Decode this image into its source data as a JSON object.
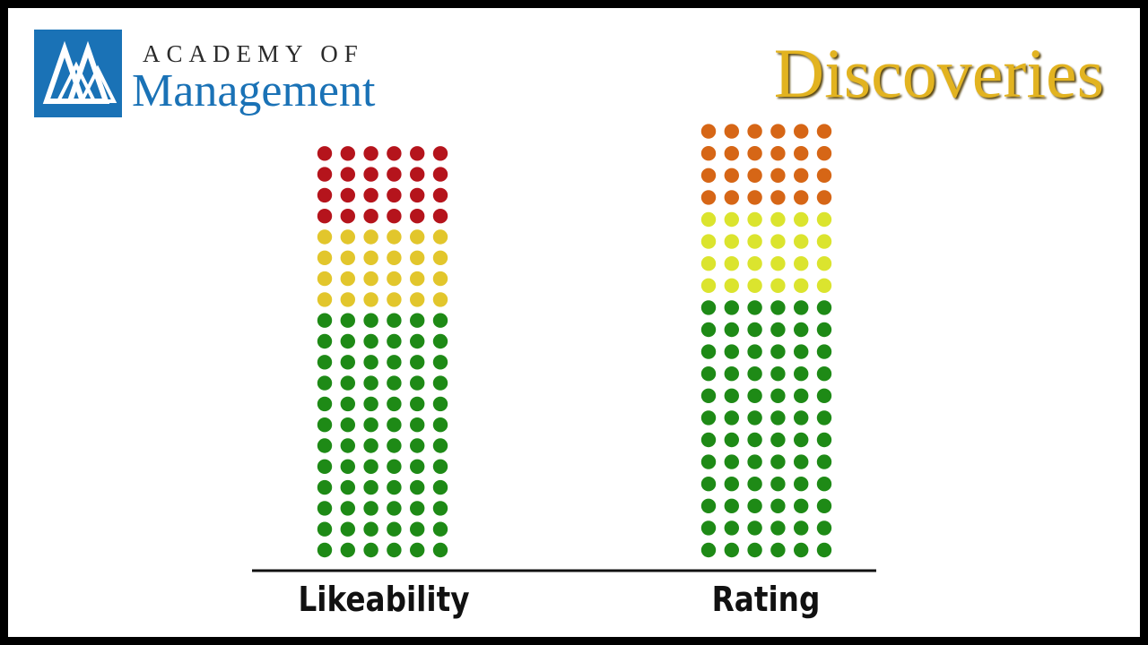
{
  "header": {
    "org_line1": "ACADEMY OF",
    "org_line2": "Management",
    "journal": "Discoveries"
  },
  "colors": {
    "red": "#b5141c",
    "yellow": "#e2c62c",
    "green": "#1e8a16",
    "orange": "#d66616",
    "lime": "#dbe42e",
    "brand_blue": "#1a72b6",
    "gold": "#e2b320"
  },
  "chart_data": {
    "type": "dot-stack",
    "categories": [
      "Likeability",
      "Rating"
    ],
    "columns_per_stack": 6,
    "series": [
      {
        "category": "Likeability",
        "segments_bottom_to_top": [
          {
            "color": "#1e8a16",
            "rows": 12
          },
          {
            "color": "#e2c62c",
            "rows": 4
          },
          {
            "color": "#b5141c",
            "rows": 4
          }
        ]
      },
      {
        "category": "Rating",
        "segments_bottom_to_top": [
          {
            "color": "#1e8a16",
            "rows": 12
          },
          {
            "color": "#dbe42e",
            "rows": 4
          },
          {
            "color": "#d66616",
            "rows": 4
          }
        ]
      }
    ],
    "baseline": true
  }
}
